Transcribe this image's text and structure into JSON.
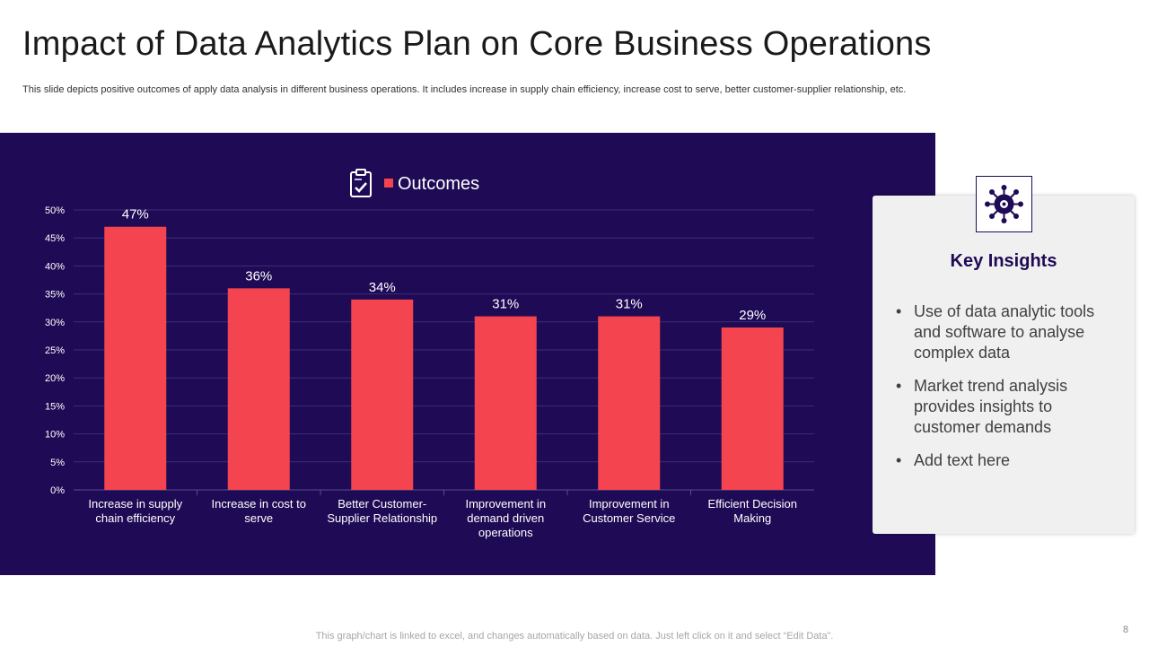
{
  "slide": {
    "title": "Impact of Data Analytics Plan on Core Business Operations",
    "subtitle": "This slide depicts positive outcomes of apply data analysis in different business operations. It includes increase in supply chain efficiency, increase cost to serve, better customer-supplier relationship, etc.",
    "footer_note": "This graph/chart is linked to excel,  and changes automatically based on data. Just left click on it and select “Edit Data”.",
    "page_number": "8"
  },
  "chart_data": {
    "type": "bar",
    "categories": [
      "Increase in supply chain efficiency",
      "Increase in cost to serve",
      "Better Customer-Supplier Relationship",
      "Improvement in demand driven operations",
      "Improvement in Customer Service",
      "Efficient Decision Making"
    ],
    "category_lines": [
      [
        "Increase in supply",
        "chain efficiency"
      ],
      [
        "Increase in cost to",
        "serve"
      ],
      [
        "Better Customer-",
        "Supplier Relationship"
      ],
      [
        "Improvement in",
        "demand driven",
        "operations"
      ],
      [
        "Improvement in",
        "Customer Service"
      ],
      [
        "Efficient Decision",
        "Making"
      ]
    ],
    "series": [
      {
        "name": "Outcomes",
        "values": [
          47,
          36,
          34,
          31,
          31,
          29
        ]
      }
    ],
    "data_labels": [
      "47%",
      "36%",
      "34%",
      "31%",
      "31%",
      "29%"
    ],
    "yticks": [
      "0%",
      "5%",
      "10%",
      "15%",
      "20%",
      "25%",
      "30%",
      "35%",
      "40%",
      "45%",
      "50%"
    ],
    "ylim": [
      0,
      50
    ],
    "y_unit": "%",
    "grid": true,
    "legend_position": "top",
    "colors": {
      "bar": "#f4444f",
      "background": "#1f0a55",
      "gridline": "#3d2e7a",
      "text": "#ffffff"
    }
  },
  "insights": {
    "icon": "network-gear-icon",
    "title": "Key Insights",
    "items": [
      "Use of data analytic tools and software to analyse complex data",
      "Market trend analysis provides insights to customer demands",
      "Add text here"
    ]
  },
  "legend": {
    "icon": "clipboard-check-icon"
  }
}
